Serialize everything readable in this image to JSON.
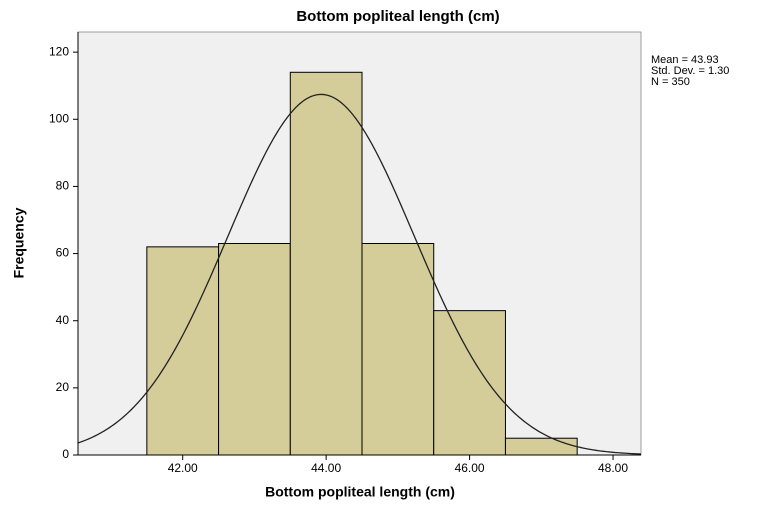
{
  "chart_data": {
    "type": "histogram",
    "title": "Bottom popliteal length (cm)",
    "x_label": "Bottom popliteal length (cm)",
    "y_label": "Frequency",
    "bins": [
      41.5,
      42.5,
      43.5,
      44.5,
      45.5,
      46.5,
      47.5
    ],
    "values": [
      62,
      63,
      114,
      63,
      43,
      5
    ],
    "color": "#d4cd99",
    "xlim": [
      40.54,
      48.39
    ],
    "xticks": [
      {
        "value": 42,
        "label": "42.00"
      },
      {
        "value": 44,
        "label": "44.00"
      },
      {
        "value": 46,
        "label": "46.00"
      },
      {
        "value": 48,
        "label": "48.00"
      }
    ],
    "ylim": [
      0,
      126
    ],
    "yticks": [
      0,
      20,
      40,
      60,
      80,
      100,
      120
    ],
    "normal_curve": {
      "mean": 43.93,
      "std_dev": 1.3,
      "n": 350,
      "labels": [
        "Mean = 43.93",
        "Std. Dev. = 1.30",
        "N = 350"
      ]
    }
  }
}
